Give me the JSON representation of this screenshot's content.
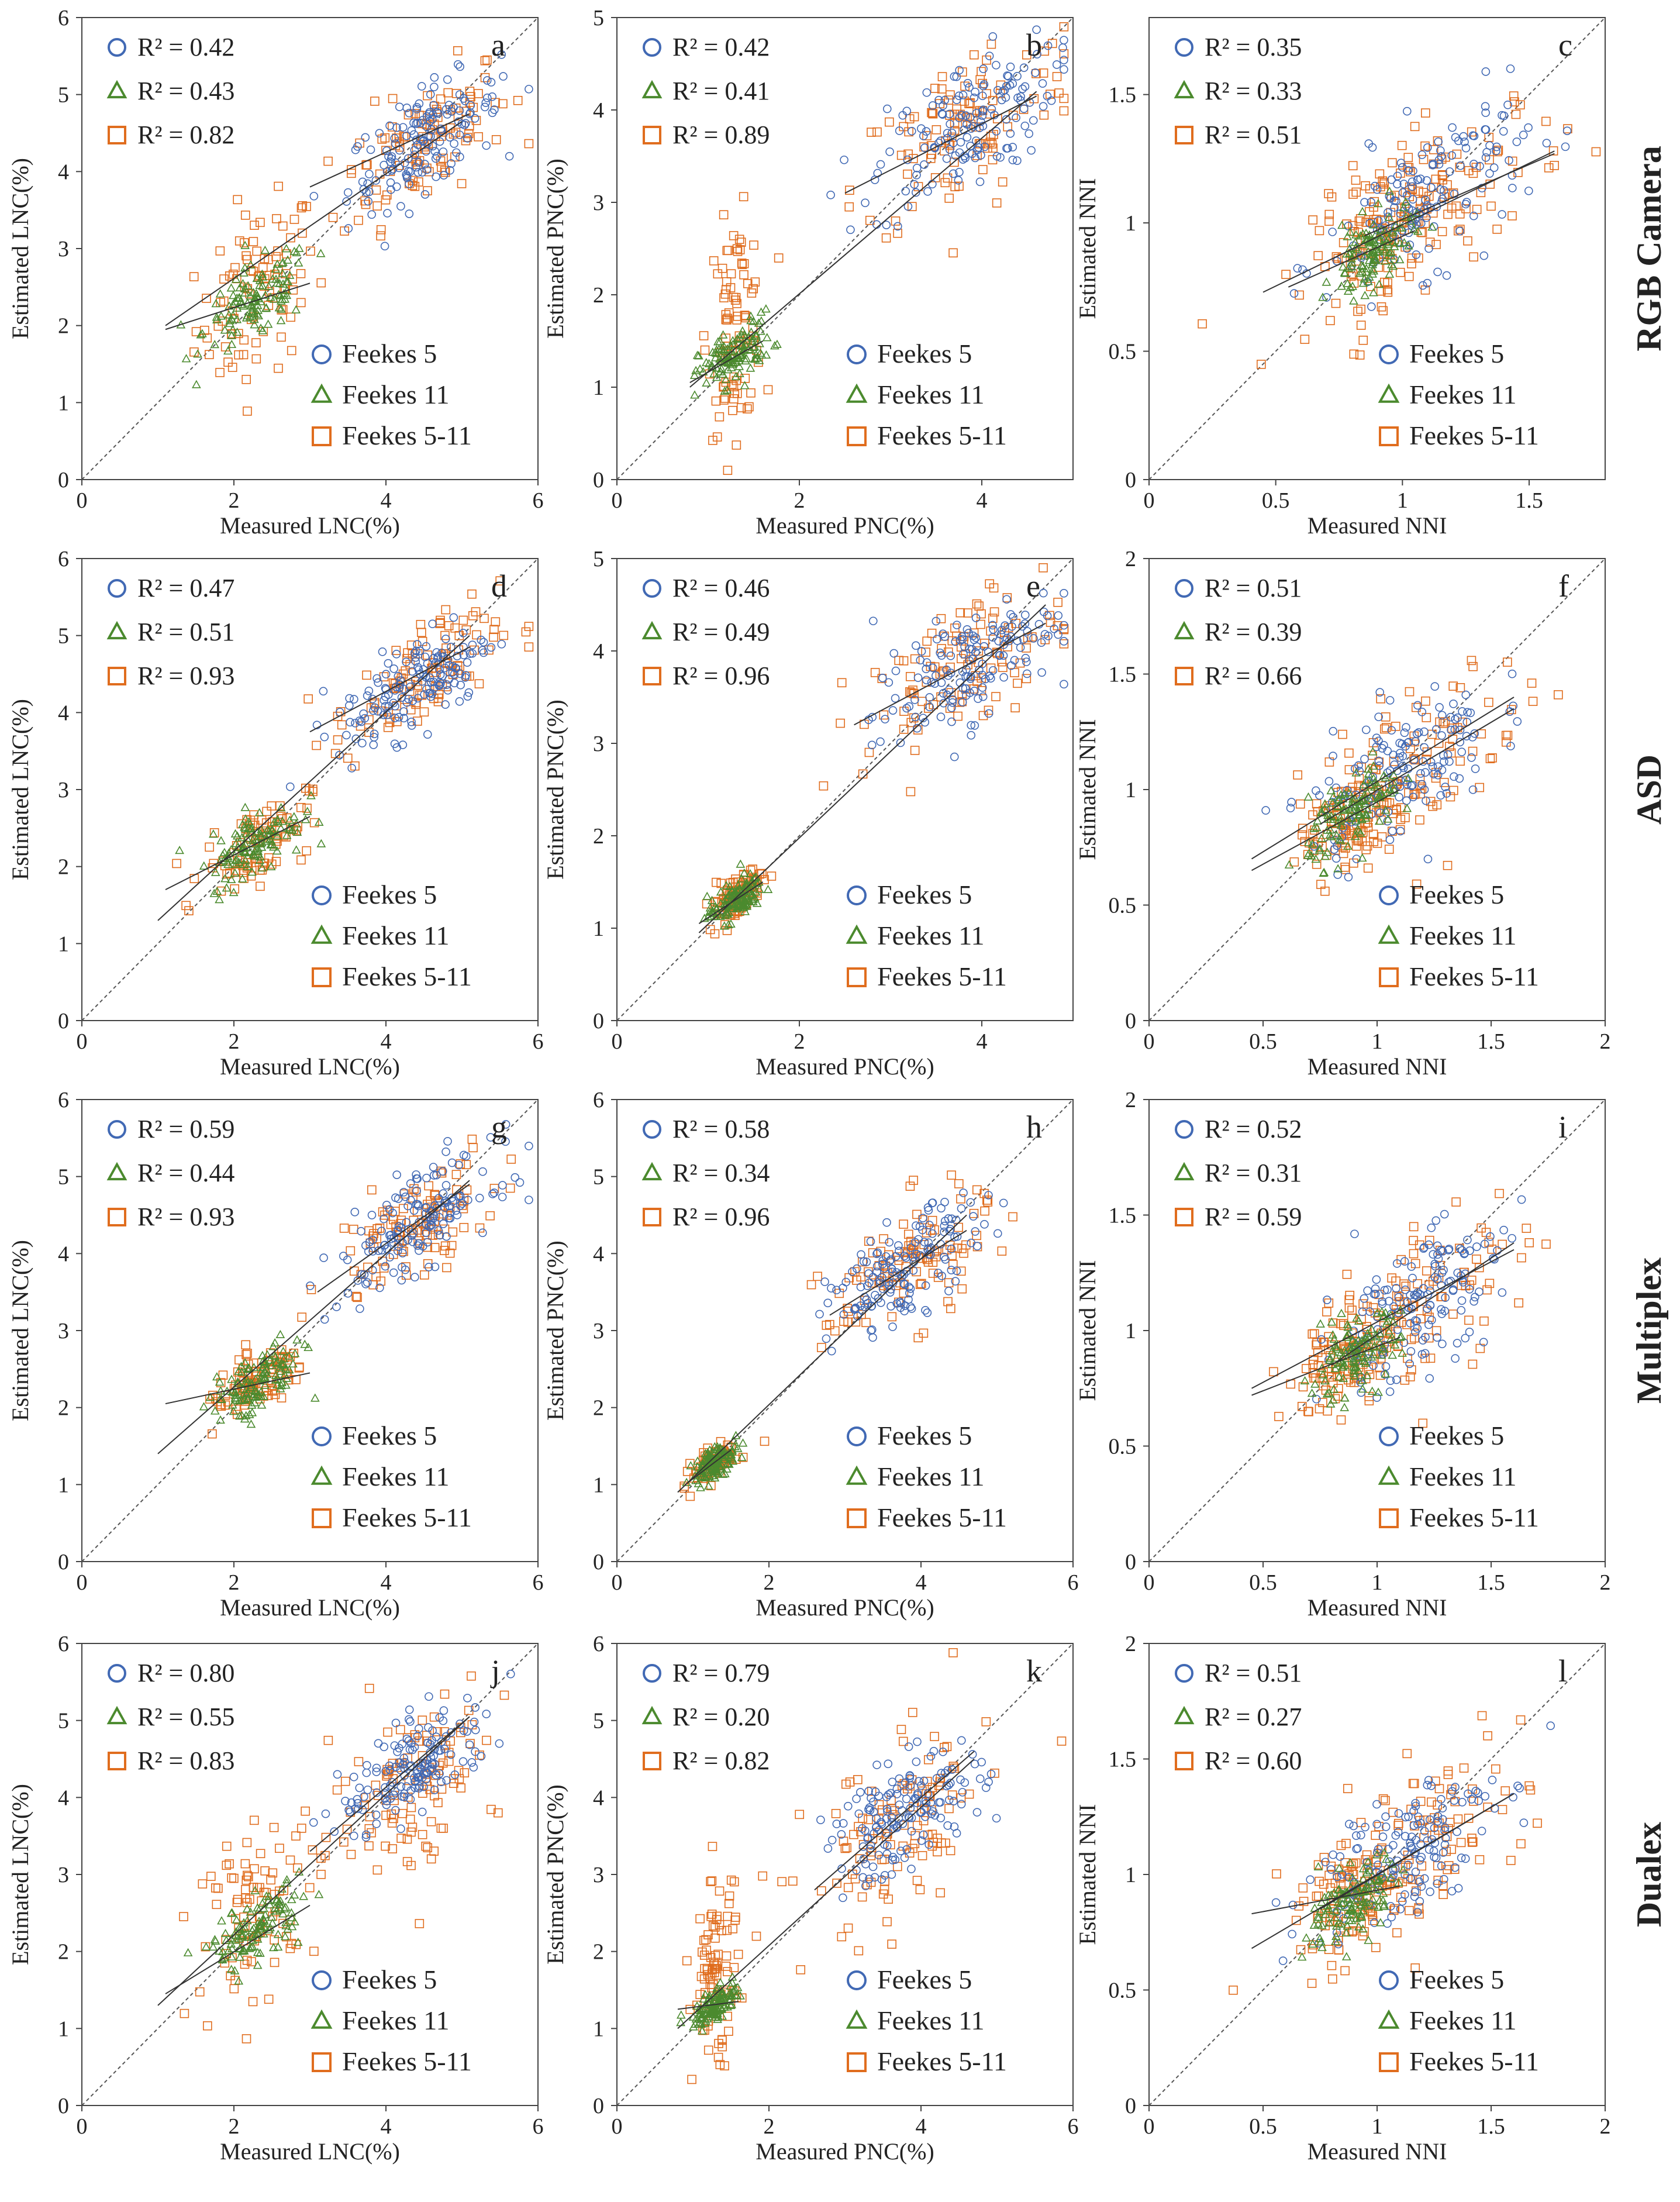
{
  "colors": {
    "feekes5": "#4169B4",
    "feekes11": "#4B8A2E",
    "feekes511": "#E06D1E",
    "axis": "#444444",
    "refline": "#555555",
    "fit": "#333333"
  },
  "row_labels": [
    "RGB Camera",
    "ASD",
    "Multiplex",
    "Dualex"
  ],
  "legend_entries": [
    "Feekes 5",
    "Feekes 11",
    "Feekes 5-11"
  ],
  "chart_data": [
    {
      "id": "a",
      "type": "scatter",
      "sensor": "RGB Camera",
      "xlabel": "Measured LNC(%)",
      "ylabel": "Estimated LNC(%)",
      "xlim": [
        0,
        6
      ],
      "ylim": [
        0,
        6
      ],
      "xticks": [
        0,
        2,
        4,
        6
      ],
      "yticks": [
        0,
        1,
        2,
        3,
        4,
        5,
        6
      ],
      "r2": [
        "R² = 0.42",
        "R² = 0.43",
        "R² = 0.82"
      ],
      "clusters": {
        "f5": [
          4.5,
          4.4,
          0.5,
          0.32
        ],
        "f11": [
          2.3,
          2.3,
          0.35,
          0.25
        ],
        "f511a": [
          2.3,
          2.4,
          0.4,
          0.55
        ],
        "f511b": [
          4.5,
          4.4,
          0.55,
          0.4
        ]
      },
      "fits": [
        [
          3.0,
          3.8,
          5.1,
          4.75
        ],
        [
          1.1,
          1.95,
          3.0,
          2.55
        ],
        [
          1.1,
          2.0,
          5.0,
          4.65
        ]
      ]
    },
    {
      "id": "b",
      "type": "scatter",
      "sensor": "RGB Camera",
      "xlabel": "Measured PNC(%)",
      "ylabel": "Estimated PNC(%)",
      "xlim": [
        0,
        5
      ],
      "ylim": [
        0,
        5
      ],
      "xticks": [
        0,
        2,
        4
      ],
      "yticks": [
        0,
        1,
        2,
        3,
        4,
        5
      ],
      "r2": [
        "R² = 0.42",
        "R² = 0.41",
        "R² = 0.89"
      ],
      "clusters": {
        "f5": [
          3.8,
          3.8,
          0.5,
          0.35
        ],
        "f11": [
          1.3,
          1.35,
          0.2,
          0.15
        ],
        "f511a": [
          1.3,
          1.7,
          0.15,
          0.55
        ],
        "f511b": [
          3.8,
          3.8,
          0.6,
          0.45
        ]
      },
      "fits": [
        [
          2.5,
          3.1,
          4.6,
          4.15
        ],
        [
          0.8,
          1.05,
          1.6,
          1.5
        ],
        [
          0.8,
          1.0,
          4.6,
          4.2
        ]
      ]
    },
    {
      "id": "c",
      "type": "scatter",
      "sensor": "RGB Camera",
      "xlabel": "Measured NNI",
      "ylabel": "Estimated NNI",
      "xlim": [
        0,
        1.8
      ],
      "ylim": [
        0,
        1.8
      ],
      "xticks": [
        0,
        0.5,
        1,
        1.5
      ],
      "yticks": [
        0,
        0.5,
        1,
        1.5
      ],
      "r2": [
        "R² = 0.35",
        "R² = 0.33",
        "R² = 0.51"
      ],
      "clusters": {
        "f5": [
          1.1,
          1.1,
          0.2,
          0.14
        ],
        "f11": [
          0.88,
          0.88,
          0.08,
          0.07
        ],
        "f511a": [
          0.9,
          0.95,
          0.12,
          0.12
        ],
        "f511b": [
          1.15,
          1.1,
          0.25,
          0.15
        ]
      },
      "fits": [
        [
          0.85,
          0.95,
          1.6,
          1.27
        ],
        [
          0.55,
          0.75,
          1.05,
          0.97
        ],
        [
          0.45,
          0.73,
          1.6,
          1.28
        ]
      ]
    },
    {
      "id": "d",
      "type": "scatter",
      "sensor": "ASD",
      "xlabel": "Measured LNC(%)",
      "ylabel": "Estimated LNC(%)",
      "xlim": [
        0,
        6
      ],
      "ylim": [
        0,
        6
      ],
      "xticks": [
        0,
        2,
        4,
        6
      ],
      "yticks": [
        0,
        1,
        2,
        3,
        4,
        5,
        6
      ],
      "r2": [
        "R² = 0.47",
        "R² = 0.51",
        "R² = 0.93"
      ],
      "clusters": {
        "f5": [
          4.4,
          4.4,
          0.5,
          0.3
        ],
        "f11": [
          2.3,
          2.3,
          0.3,
          0.22
        ],
        "f511a": [
          2.3,
          2.3,
          0.35,
          0.25
        ],
        "f511b": [
          4.4,
          4.4,
          0.55,
          0.35
        ]
      },
      "fits": [
        [
          3.0,
          3.75,
          5.1,
          4.85
        ],
        [
          1.1,
          1.7,
          3.0,
          2.65
        ],
        [
          1.0,
          1.3,
          5.1,
          5.0
        ]
      ]
    },
    {
      "id": "e",
      "type": "scatter",
      "sensor": "ASD",
      "xlabel": "Measured PNC(%)",
      "ylabel": "Estimated PNC(%)",
      "xlim": [
        0,
        5
      ],
      "ylim": [
        0,
        5
      ],
      "xticks": [
        0,
        2,
        4
      ],
      "yticks": [
        0,
        1,
        2,
        3,
        4,
        5
      ],
      "r2": [
        "R² = 0.46",
        "R² = 0.49",
        "R² = 0.96"
      ],
      "clusters": {
        "f5": [
          3.8,
          3.8,
          0.5,
          0.3
        ],
        "f11": [
          1.3,
          1.3,
          0.15,
          0.1
        ],
        "f511a": [
          1.3,
          1.35,
          0.15,
          0.12
        ],
        "f511b": [
          3.8,
          3.85,
          0.55,
          0.35
        ]
      },
      "fits": [
        [
          2.6,
          3.2,
          4.7,
          4.3
        ],
        [
          0.9,
          1.05,
          1.6,
          1.5
        ],
        [
          0.9,
          0.95,
          4.7,
          4.5
        ]
      ]
    },
    {
      "id": "f",
      "type": "scatter",
      "sensor": "ASD",
      "xlabel": "Measured NNI",
      "ylabel": "Estimated NNI",
      "xlim": [
        0,
        2
      ],
      "ylim": [
        0,
        2
      ],
      "xticks": [
        0,
        0.5,
        1,
        1.5,
        2
      ],
      "yticks": [
        0,
        0.5,
        1,
        1.5,
        2
      ],
      "r2": [
        "R² = 0.51",
        "R² = 0.39",
        "R² = 0.66"
      ],
      "clusters": {
        "f5": [
          1.1,
          1.1,
          0.2,
          0.15
        ],
        "f11": [
          0.9,
          0.9,
          0.1,
          0.08
        ],
        "f511a": [
          0.9,
          0.88,
          0.12,
          0.1
        ],
        "f511b": [
          1.15,
          1.1,
          0.25,
          0.17
        ]
      },
      "fits": [
        [
          0.75,
          0.85,
          1.6,
          1.35
        ],
        [
          0.45,
          0.65,
          1.1,
          1.0
        ],
        [
          0.45,
          0.7,
          1.6,
          1.4
        ]
      ]
    },
    {
      "id": "g",
      "type": "scatter",
      "sensor": "Multiplex",
      "xlabel": "Measured LNC(%)",
      "ylabel": "Estimated LNC(%)",
      "xlim": [
        0,
        6
      ],
      "ylim": [
        0,
        6
      ],
      "xticks": [
        0,
        2,
        4,
        6
      ],
      "yticks": [
        0,
        1,
        2,
        3,
        4,
        5,
        6
      ],
      "r2": [
        "R² = 0.59",
        "R² = 0.44",
        "R² = 0.93"
      ],
      "clusters": {
        "f5": [
          4.4,
          4.4,
          0.5,
          0.3
        ],
        "f11": [
          2.3,
          2.3,
          0.3,
          0.2
        ],
        "f511a": [
          2.3,
          2.3,
          0.35,
          0.18
        ],
        "f511b": [
          4.4,
          4.4,
          0.55,
          0.35
        ]
      },
      "fits": [
        [
          3.1,
          3.5,
          5.1,
          4.9
        ],
        [
          1.1,
          2.05,
          3.0,
          2.45
        ],
        [
          1.0,
          1.4,
          5.1,
          4.95
        ]
      ]
    },
    {
      "id": "h",
      "type": "scatter",
      "sensor": "Multiplex",
      "xlabel": "Measured PNC(%)",
      "ylabel": "Estimated PNC(%)",
      "xlim": [
        0,
        6
      ],
      "ylim": [
        0,
        6
      ],
      "xticks": [
        0,
        2,
        4,
        6
      ],
      "yticks": [
        0,
        1,
        2,
        3,
        4,
        5,
        6
      ],
      "r2": [
        "R² = 0.58",
        "R² = 0.34",
        "R² = 0.96"
      ],
      "clusters": {
        "f5": [
          3.8,
          3.8,
          0.5,
          0.3
        ],
        "f11": [
          1.3,
          1.3,
          0.15,
          0.1
        ],
        "f511a": [
          1.3,
          1.3,
          0.15,
          0.1
        ],
        "f511b": [
          3.8,
          3.8,
          0.55,
          0.4
        ]
      },
      "fits": [
        [
          2.8,
          3.2,
          4.6,
          4.3
        ],
        [
          0.9,
          1.0,
          1.5,
          1.45
        ],
        [
          0.8,
          0.9,
          4.6,
          4.5
        ]
      ]
    },
    {
      "id": "i",
      "type": "scatter",
      "sensor": "Multiplex",
      "xlabel": "Measured NNI",
      "ylabel": "Estimated NNI",
      "xlim": [
        0,
        2
      ],
      "ylim": [
        0,
        2
      ],
      "xticks": [
        0,
        0.5,
        1,
        1.5,
        2
      ],
      "yticks": [
        0,
        0.5,
        1,
        1.5,
        2
      ],
      "r2": [
        "R² = 0.52",
        "R² = 0.31",
        "R² = 0.59"
      ],
      "clusters": {
        "f5": [
          1.15,
          1.1,
          0.2,
          0.15
        ],
        "f11": [
          0.9,
          0.88,
          0.1,
          0.08
        ],
        "f511a": [
          0.88,
          0.9,
          0.12,
          0.1
        ],
        "f511b": [
          1.15,
          1.1,
          0.25,
          0.18
        ]
      },
      "fits": [
        [
          0.8,
          0.85,
          1.6,
          1.38
        ],
        [
          0.45,
          0.72,
          1.1,
          0.97
        ],
        [
          0.45,
          0.75,
          1.6,
          1.35
        ]
      ]
    },
    {
      "id": "j",
      "type": "scatter",
      "sensor": "Dualex",
      "xlabel": "Measured LNC(%)",
      "ylabel": "Estimated LNC(%)",
      "xlim": [
        0,
        6
      ],
      "ylim": [
        0,
        6
      ],
      "xticks": [
        0,
        2,
        4,
        6
      ],
      "yticks": [
        0,
        1,
        2,
        3,
        4,
        5,
        6
      ],
      "r2": [
        "R² = 0.80",
        "R² = 0.55",
        "R² = 0.83"
      ],
      "clusters": {
        "f5": [
          4.4,
          4.4,
          0.5,
          0.3
        ],
        "f11": [
          2.3,
          2.3,
          0.3,
          0.2
        ],
        "f511a": [
          2.3,
          2.6,
          0.4,
          0.5
        ],
        "f511b": [
          4.4,
          4.2,
          0.55,
          0.55
        ]
      },
      "fits": [
        [
          3.0,
          3.3,
          5.1,
          5.05
        ],
        [
          1.1,
          1.45,
          3.0,
          2.6
        ],
        [
          1.0,
          1.3,
          5.1,
          5.05
        ]
      ]
    },
    {
      "id": "k",
      "type": "scatter",
      "sensor": "Dualex",
      "xlabel": "Measured PNC(%)",
      "ylabel": "Estimated PNC(%)",
      "xlim": [
        0,
        6
      ],
      "ylim": [
        0,
        6
      ],
      "xticks": [
        0,
        2,
        4,
        6
      ],
      "yticks": [
        0,
        1,
        2,
        3,
        4,
        5,
        6
      ],
      "r2": [
        "R² = 0.79",
        "R² = 0.20",
        "R² = 0.82"
      ],
      "clusters": {
        "f5": [
          3.8,
          3.8,
          0.5,
          0.35
        ],
        "f11": [
          1.3,
          1.3,
          0.15,
          0.1
        ],
        "f511a": [
          1.3,
          1.7,
          0.15,
          0.6
        ],
        "f511b": [
          3.7,
          3.5,
          0.6,
          0.6
        ]
      },
      "fits": [
        [
          2.6,
          2.8,
          4.7,
          4.6
        ],
        [
          0.8,
          1.25,
          1.6,
          1.35
        ],
        [
          0.8,
          1.0,
          4.7,
          4.5
        ]
      ]
    },
    {
      "id": "l",
      "type": "scatter",
      "sensor": "Dualex",
      "xlabel": "Measured NNI",
      "ylabel": "Estimated NNI",
      "xlim": [
        0,
        2
      ],
      "ylim": [
        0,
        2
      ],
      "xticks": [
        0,
        0.5,
        1,
        1.5,
        2
      ],
      "yticks": [
        0,
        0.5,
        1,
        1.5,
        2
      ],
      "r2": [
        "R² = 0.51",
        "R² = 0.27",
        "R² = 0.60"
      ],
      "clusters": {
        "f5": [
          1.1,
          1.1,
          0.2,
          0.15
        ],
        "f11": [
          0.9,
          0.88,
          0.1,
          0.08
        ],
        "f511a": [
          0.9,
          0.9,
          0.12,
          0.1
        ],
        "f511b": [
          1.15,
          1.1,
          0.25,
          0.18
        ]
      },
      "fits": [
        [
          0.75,
          0.85,
          1.6,
          1.35
        ],
        [
          0.45,
          0.83,
          1.1,
          0.95
        ],
        [
          0.45,
          0.68,
          1.6,
          1.35
        ]
      ]
    }
  ]
}
